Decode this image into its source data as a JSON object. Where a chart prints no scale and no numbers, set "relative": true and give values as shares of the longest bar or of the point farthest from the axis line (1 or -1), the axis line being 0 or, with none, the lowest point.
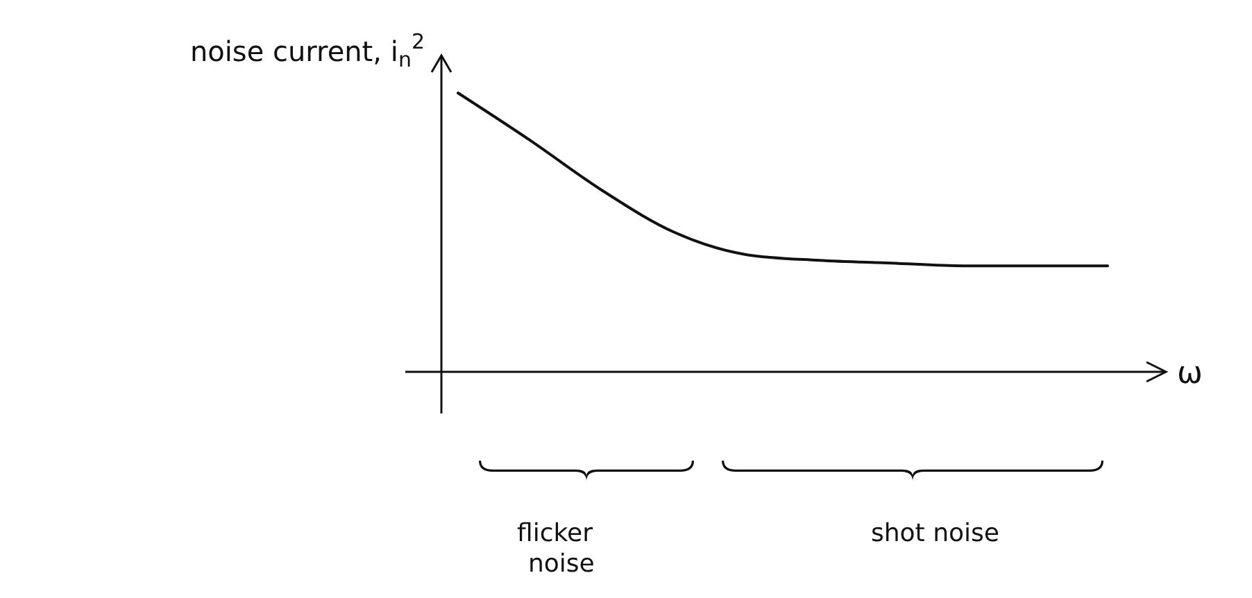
{
  "chart_data": {
    "type": "line",
    "relative": true,
    "ylabel": "noise current, i$_{n}$$^{2}$",
    "xlabel": "ω",
    "categories": [
      null,
      null,
      null,
      null,
      null,
      null,
      null,
      null,
      null,
      null
    ],
    "series": [
      {
        "color": "#111111",
        "values": [
          1,
          0.83,
          0.65,
          0.5,
          0.42,
          0.4,
          0.39,
          0.38,
          0.38,
          0.38
        ]
      }
    ],
    "annotations": [
      "flicker noise",
      "shot noise"
    ],
    "marker": "none",
    "line_style": "solid"
  }
}
